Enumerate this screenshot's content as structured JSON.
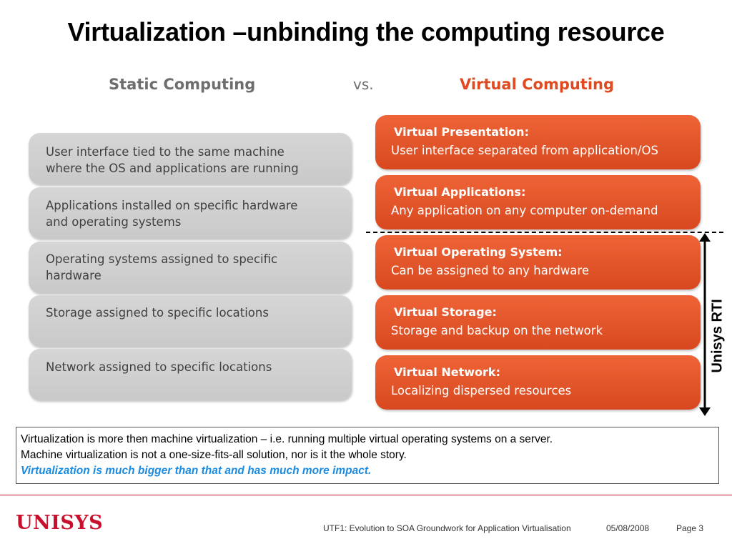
{
  "slide": {
    "title": "Virtualization –unbinding the computing resource"
  },
  "headers": {
    "static": "Static Computing",
    "vs": "vs.",
    "virtual": "Virtual Computing"
  },
  "static_items": [
    "User interface tied to the same machine\nwhere the OS and applications are running",
    "Applications installed on specific hardware\nand operating systems",
    "Operating systems assigned to specific\nhardware",
    "Storage assigned to specific locations",
    "Network assigned to specific locations"
  ],
  "virtual_items": [
    {
      "title": "Virtual Presentation:",
      "desc": "User interface separated from application/OS"
    },
    {
      "title": "Virtual Applications:",
      "desc": "Any application on any computer on-demand"
    },
    {
      "title": "Virtual Operating System:",
      "desc": "Can be assigned to any hardware"
    },
    {
      "title": "Virtual Storage:",
      "desc": "Storage and backup on the network"
    },
    {
      "title": "Virtual Network:",
      "desc": "Localizing dispersed resources"
    }
  ],
  "side_label": "Unisys RTI",
  "note": {
    "line1": "Virtualization is more then machine virtualization – i.e.  running multiple virtual operating systems on a server.",
    "line2": "Machine virtualization is not a one-size-fits-all solution, nor is it the whole story.",
    "line3": "Virtualization is much bigger than that and has much more impact."
  },
  "footer": {
    "logo": "UNISYS",
    "presentation": "UTF1: Evolution to SOA Groundwork for Application Virtualisation",
    "date": "05/08/2008",
    "page": "Page 3"
  },
  "colors": {
    "accent": "#e04a20",
    "brand": "#c8102e",
    "emphasis": "#1a8be0",
    "static_box": "#cccccc"
  }
}
